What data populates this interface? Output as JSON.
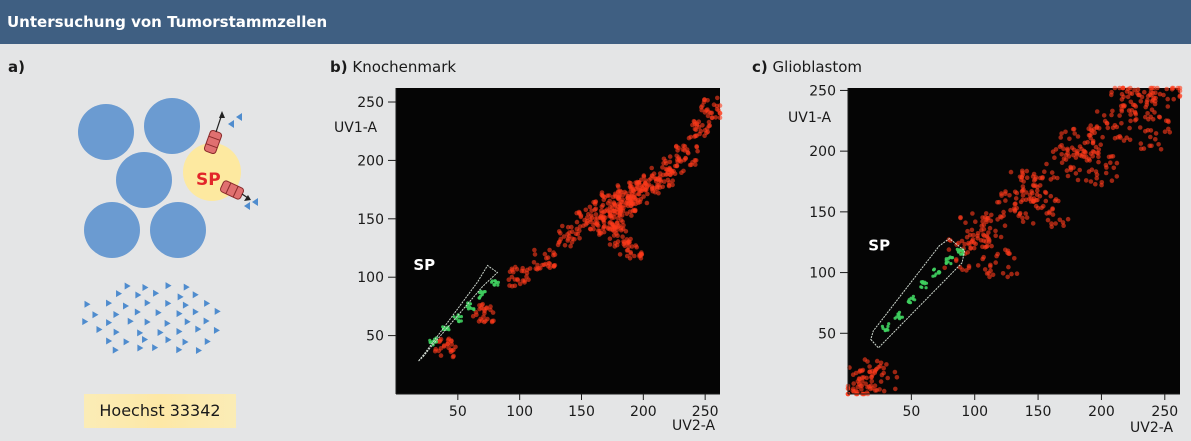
{
  "header": {
    "title": "Untersuchung von Tumorstammzellen"
  },
  "panel_a": {
    "letter": "a)",
    "sp_label": "SP",
    "dye_label": "Hoechst 33342",
    "colors": {
      "cell": "#6b9bd1",
      "sp_cell": "#fde9a0",
      "sp_text": "#e2262a",
      "pump": "#e07070",
      "dye": "#4f8cce"
    }
  },
  "panel_b": {
    "letter": "b)",
    "title": "Knochenmark",
    "sp_label": "SP",
    "ylabel": "UV1-A",
    "xlabel": "UV2-A"
  },
  "panel_c": {
    "letter": "c)",
    "title": "Glioblastom",
    "sp_label": "SP",
    "ylabel": "UV1-A",
    "xlabel": "UV2-A"
  },
  "chart_data": [
    {
      "type": "scatter",
      "title": "Knochenmark",
      "xlabel": "UV2-A",
      "ylabel": "UV1-A",
      "xlim": [
        0,
        262
      ],
      "ylim": [
        0,
        262
      ],
      "xticks": [
        50,
        100,
        150,
        200,
        250
      ],
      "yticks": [
        50,
        100,
        150,
        200,
        250
      ],
      "annotations": [
        "SP"
      ],
      "grid": false,
      "series": [
        {
          "color": "#ff3a1a",
          "x": [
            40,
            70,
            100,
            120,
            140,
            155,
            165,
            175,
            185,
            195,
            205,
            215,
            225,
            235,
            245,
            255,
            170,
            180,
            190,
            185,
            175,
            195
          ],
          "y": [
            40,
            70,
            100,
            115,
            135,
            150,
            158,
            165,
            170,
            175,
            180,
            186,
            195,
            205,
            225,
            245,
            145,
            135,
            125,
            160,
            150,
            172
          ]
        },
        {
          "color": "#3fcf5f",
          "x": [
            30,
            40,
            50,
            60,
            70,
            80
          ],
          "y": [
            45,
            55,
            65,
            75,
            85,
            95
          ]
        }
      ],
      "gate": [
        [
          22,
          32
        ],
        [
          28,
          40
        ],
        [
          70,
          92
        ],
        [
          82,
          104
        ],
        [
          74,
          110
        ],
        [
          66,
          96
        ],
        [
          24,
          36
        ],
        [
          18,
          28
        ]
      ]
    },
    {
      "type": "scatter",
      "title": "Glioblastom",
      "xlabel": "UV2-A",
      "ylabel": "UV1-A",
      "xlim": [
        0,
        262
      ],
      "ylim": [
        0,
        252
      ],
      "xticks": [
        50,
        100,
        150,
        200,
        250
      ],
      "yticks": [
        50,
        100,
        150,
        200,
        250
      ],
      "annotations": [
        "SP"
      ],
      "grid": false,
      "series": [
        {
          "color": "#ff3a1a",
          "x": [
            90,
            110,
            130,
            150,
            170,
            190,
            210,
            230,
            250,
            120,
            160,
            200,
            240,
            100,
            140,
            180,
            220,
            5,
            15,
            25
          ],
          "y": [
            115,
            135,
            155,
            172,
            190,
            205,
            222,
            238,
            250,
            110,
            150,
            185,
            215,
            135,
            170,
            210,
            245,
            5,
            10,
            15
          ]
        },
        {
          "color": "#3fcf5f",
          "x": [
            30,
            40,
            50,
            60,
            70,
            80,
            88
          ],
          "y": [
            55,
            65,
            78,
            90,
            100,
            110,
            118
          ]
        }
      ],
      "gate": [
        [
          18,
          45
        ],
        [
          24,
          38
        ],
        [
          90,
          108
        ],
        [
          92,
          118
        ],
        [
          80,
          128
        ],
        [
          72,
          122
        ],
        [
          20,
          52
        ]
      ]
    }
  ]
}
